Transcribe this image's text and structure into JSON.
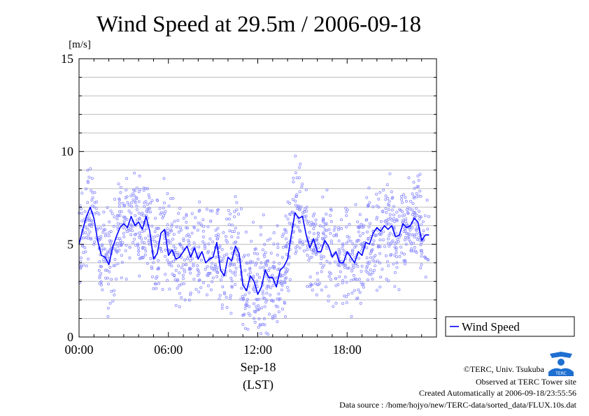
{
  "chart_data": {
    "type": "line",
    "title": "Wind Speed at 29.5m / 2006-09-18",
    "ylabel": "[m/s]",
    "ylim": [
      0,
      15
    ],
    "yticks": [
      "0",
      "5",
      "10",
      "15"
    ],
    "xlim": [
      0,
      23.5
    ],
    "xticks": [
      "00:00",
      "06:00",
      "12:00",
      "18:00"
    ],
    "x_date": "Sep-18",
    "x_tz": "(LST)",
    "grid": true,
    "legend_placement": "right",
    "series": [
      {
        "name": "Wind Speed",
        "style": "line with scattered raw samples",
        "color": "#0000ff",
        "x": [
          0.0,
          0.25,
          0.5,
          0.75,
          1.0,
          1.25,
          1.5,
          1.75,
          2.0,
          2.25,
          2.5,
          2.75,
          3.0,
          3.25,
          3.5,
          3.75,
          4.0,
          4.25,
          4.5,
          4.75,
          5.0,
          5.25,
          5.5,
          5.75,
          6.0,
          6.25,
          6.5,
          6.75,
          7.0,
          7.25,
          7.5,
          7.75,
          8.0,
          8.25,
          8.5,
          8.75,
          9.0,
          9.25,
          9.5,
          9.75,
          10.0,
          10.25,
          10.5,
          10.75,
          11.0,
          11.25,
          11.5,
          11.75,
          12.0,
          12.25,
          12.5,
          12.75,
          13.0,
          13.25,
          13.5,
          13.75,
          14.0,
          14.25,
          14.5,
          14.75,
          15.0,
          15.25,
          15.5,
          15.75,
          16.0,
          16.25,
          16.5,
          16.75,
          17.0,
          17.25,
          17.5,
          17.75,
          18.0,
          18.25,
          18.5,
          18.75,
          19.0,
          19.25,
          19.5,
          19.75,
          20.0,
          20.25,
          20.5,
          20.75,
          21.0,
          21.25,
          21.5,
          21.75,
          22.0,
          22.25,
          22.5,
          22.75,
          23.0,
          23.25,
          23.5
        ],
        "y": [
          5.0,
          5.8,
          6.5,
          7.0,
          6.4,
          5.2,
          4.4,
          4.3,
          3.9,
          4.8,
          5.4,
          5.9,
          6.1,
          5.9,
          6.5,
          6.0,
          6.2,
          5.8,
          6.5,
          5.7,
          4.2,
          4.5,
          5.6,
          5.8,
          4.4,
          4.7,
          4.2,
          4.3,
          4.6,
          4.9,
          4.3,
          4.8,
          4.2,
          4.6,
          4.0,
          4.2,
          4.3,
          5.1,
          3.6,
          3.3,
          4.3,
          4.1,
          4.9,
          4.5,
          2.8,
          2.5,
          3.3,
          3.0,
          2.3,
          2.7,
          3.6,
          3.2,
          3.2,
          2.7,
          3.6,
          3.8,
          4.2,
          5.5,
          6.7,
          6.4,
          6.5,
          5.5,
          4.8,
          5.3,
          4.6,
          4.6,
          5.2,
          4.9,
          4.3,
          4.6,
          4.0,
          4.0,
          4.6,
          4.3,
          4.0,
          4.6,
          4.4,
          5.1,
          5.0,
          5.6,
          5.9,
          5.7,
          6.0,
          5.8,
          6.0,
          5.4,
          5.5,
          6.1,
          5.9,
          6.0,
          6.4,
          6.2,
          5.2,
          5.5,
          5.5
        ]
      }
    ]
  },
  "legend": {
    "label": "Wind Speed"
  },
  "footer": {
    "copyright": "©TERC, Univ. Tsukuba",
    "site": "Observed at TERC Tower site",
    "created": "Created Automatically at 2006-09-18/23:55:56",
    "source": "Data source : /home/hojyo/new/TERC-data/sorted_data/FLUX.10s.dat"
  },
  "logo": {
    "icon": "terc-logo",
    "text": "TERC"
  }
}
